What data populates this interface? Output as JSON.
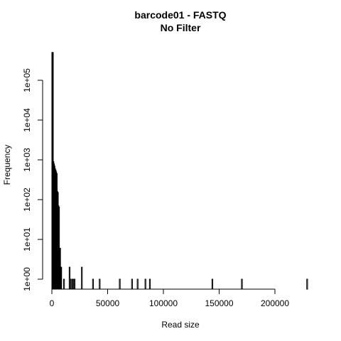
{
  "chart_data": {
    "type": "bar",
    "title": "barcode01 - FASTQ",
    "subtitle": "No Filter",
    "xlabel": "Read size",
    "ylabel": "Frequency",
    "y_scale": "log",
    "xlim": [
      0,
      230000
    ],
    "ylim": [
      1,
      600000
    ],
    "x_ticks": [
      0,
      50000,
      100000,
      150000,
      200000
    ],
    "x_tick_labels": [
      "0",
      "50000",
      "100000",
      "150000",
      "200000"
    ],
    "y_ticks": [
      1,
      10,
      100,
      1000,
      10000,
      100000
    ],
    "y_tick_labels": [
      "1e+00",
      "1e+01",
      "1e+02",
      "1e+03",
      "1e+04",
      "1e+05"
    ],
    "bin_width": 500,
    "bins": [
      {
        "x": 0,
        "count": 500000
      },
      {
        "x": 500,
        "count": 500000
      },
      {
        "x": 1000,
        "count": 900
      },
      {
        "x": 1500,
        "count": 800
      },
      {
        "x": 2000,
        "count": 700
      },
      {
        "x": 2500,
        "count": 600
      },
      {
        "x": 3000,
        "count": 550
      },
      {
        "x": 3500,
        "count": 500
      },
      {
        "x": 4000,
        "count": 450
      },
      {
        "x": 4500,
        "count": 160
      },
      {
        "x": 5000,
        "count": 150
      },
      {
        "x": 5500,
        "count": 70
      },
      {
        "x": 6000,
        "count": 65
      },
      {
        "x": 6500,
        "count": 6
      },
      {
        "x": 7000,
        "count": 6
      },
      {
        "x": 7500,
        "count": 2
      },
      {
        "x": 8000,
        "count": 2
      },
      {
        "x": 10500,
        "count": 1
      },
      {
        "x": 15500,
        "count": 2
      },
      {
        "x": 16500,
        "count": 1
      },
      {
        "x": 18000,
        "count": 1
      },
      {
        "x": 19000,
        "count": 1
      },
      {
        "x": 20000,
        "count": 1
      },
      {
        "x": 26500,
        "count": 2
      },
      {
        "x": 36500,
        "count": 1
      },
      {
        "x": 42500,
        "count": 1
      },
      {
        "x": 60500,
        "count": 1
      },
      {
        "x": 71500,
        "count": 1
      },
      {
        "x": 76500,
        "count": 1
      },
      {
        "x": 83500,
        "count": 1
      },
      {
        "x": 87500,
        "count": 1
      },
      {
        "x": 143500,
        "count": 1
      },
      {
        "x": 170000,
        "count": 1
      },
      {
        "x": 228500,
        "count": 1
      }
    ]
  }
}
